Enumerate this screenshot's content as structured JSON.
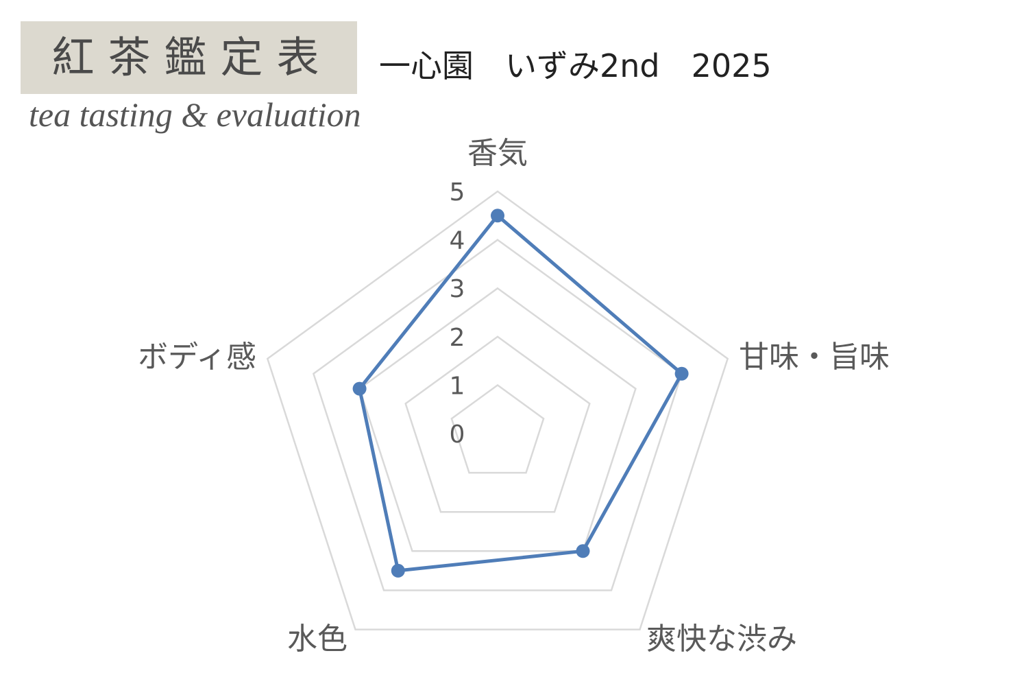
{
  "header": {
    "brand_title": "紅茶鑑定表",
    "brand_subtitle": "tea tasting & evaluation",
    "chart_subtitle": "一心園　いずみ2nd　2025"
  },
  "chart_data": {
    "type": "radar",
    "categories": [
      "香気",
      "甘味・旨味",
      "爽快な渋み",
      "水色",
      "ボディ感"
    ],
    "values": [
      4.5,
      4.0,
      3.0,
      3.5,
      3.0
    ],
    "rlim": [
      0,
      5
    ],
    "ticks": [
      "0",
      "1",
      "2",
      "3",
      "4",
      "5"
    ],
    "legend": "none",
    "grid": true,
    "colors": {
      "series": "#4f7db8",
      "grid": "#d9d9d9",
      "label": "#595959",
      "brand_bg": "#dcd9cf"
    }
  }
}
